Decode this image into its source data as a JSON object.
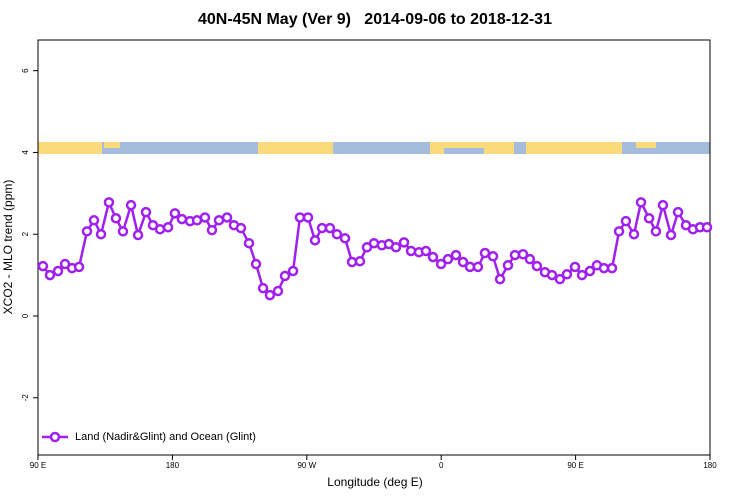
{
  "chart_data": {
    "type": "line",
    "title": "40N-45N May (Ver 9)   2014-09-06 to 2018-12-31",
    "xlabel": "Longitude (deg E)",
    "ylabel": "XCO2 - MLO trend (ppm)",
    "xlim": [
      90,
      540
    ],
    "xticks": [
      {
        "value": 90,
        "label": "90 E"
      },
      180,
      {
        "value": 270,
        "label": "90 W"
      },
      {
        "value": 360,
        "label": "0"
      },
      {
        "value": 450,
        "label": "90 E"
      },
      {
        "value": 540,
        "label": "180"
      }
    ],
    "ylim": [
      -3.4,
      6.75
    ],
    "yticks": [
      -2,
      0,
      2,
      4,
      6
    ],
    "legend": "bottomleft",
    "x": [
      93.3,
      98.0,
      103.4,
      108.1,
      112.8,
      117.5,
      122.8,
      127.5,
      132.2,
      137.5,
      142.2,
      146.9,
      152.3,
      157.0,
      162.3,
      167.0,
      171.7,
      177.1,
      181.7,
      186.4,
      191.8,
      196.5,
      201.8,
      206.5,
      211.2,
      216.6,
      221.2,
      225.9,
      231.3,
      236.0,
      240.7,
      245.3,
      250.7,
      255.4,
      260.8,
      265.4,
      270.8,
      275.5,
      280.2,
      285.5,
      290.2,
      295.6,
      300.3,
      305.6,
      310.3,
      315.0,
      320.3,
      325.0,
      329.7,
      335.1,
      339.8,
      345.1,
      349.8,
      354.5,
      359.9,
      364.5,
      369.9,
      374.6,
      379.3,
      384.6,
      389.3,
      394.7,
      399.4,
      404.7,
      409.4,
      414.8,
      419.4,
      424.1,
      429.5,
      434.2,
      439.5,
      444.2,
      449.6,
      454.3,
      459.6,
      464.3,
      469.0,
      474.4,
      479.1,
      483.7,
      489.1,
      493.8,
      499.2,
      503.8,
      508.5,
      513.9,
      518.6,
      523.9,
      528.6,
      533.3,
      538.0
    ],
    "series": [
      {
        "name": "Land (Nadir&Glint) and Ocean (Glint)",
        "color": "#a020f0",
        "values": [
          1.22,
          1.0,
          1.1,
          1.27,
          1.17,
          1.2,
          2.07,
          2.34,
          2.0,
          2.78,
          2.39,
          2.07,
          2.71,
          1.98,
          2.54,
          2.22,
          2.12,
          2.17,
          2.51,
          2.37,
          2.32,
          2.34,
          2.41,
          2.1,
          2.34,
          2.41,
          2.22,
          2.15,
          1.78,
          1.27,
          0.68,
          0.51,
          0.61,
          0.98,
          1.1,
          2.41,
          2.41,
          1.85,
          2.15,
          2.15,
          2.0,
          1.9,
          1.32,
          1.34,
          1.68,
          1.78,
          1.73,
          1.76,
          1.68,
          1.8,
          1.59,
          1.56,
          1.59,
          1.44,
          1.27,
          1.39,
          1.49,
          1.32,
          1.2,
          1.2,
          1.54,
          1.46,
          0.9,
          1.24,
          1.49,
          1.51,
          1.39,
          1.22,
          1.07,
          1.0,
          0.9,
          1.02,
          1.2,
          1.0,
          1.1,
          1.24,
          1.17,
          1.17,
          2.07,
          2.32,
          2.0,
          2.78,
          2.39,
          2.07,
          2.71,
          1.98,
          2.54,
          2.22,
          2.12,
          2.17,
          2.17
        ]
      }
    ]
  }
}
